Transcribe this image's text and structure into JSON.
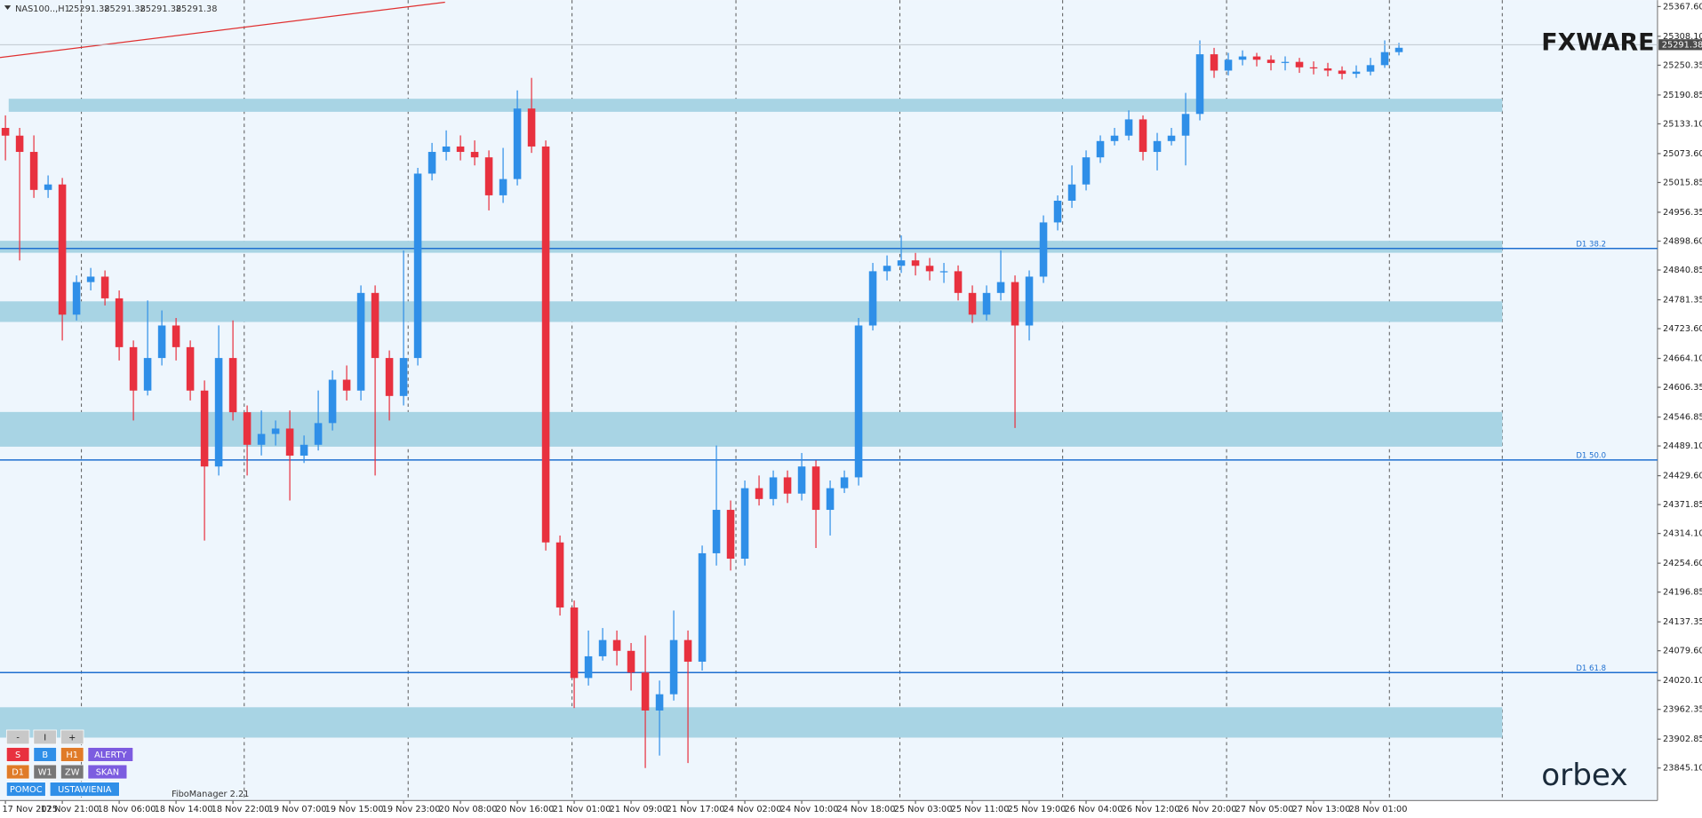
{
  "header": {
    "symbol": "NAS100..,H1",
    "ohlc": [
      25291.38,
      25291.38,
      25291.38,
      25291.38
    ]
  },
  "branding": {
    "top": "FXWARE",
    "bottom": "orbex"
  },
  "indicator_label": "FiboManager 2.21",
  "buttons": [
    [
      {
        "label": "-",
        "color": "#c8c8c8"
      },
      {
        "label": "I",
        "color": "#c8c8c8"
      },
      {
        "label": "+",
        "color": "#c8c8c8"
      }
    ],
    [
      {
        "label": "S",
        "color": "#e8313f"
      },
      {
        "label": "B",
        "color": "#2f8fe8"
      },
      {
        "label": "H1",
        "color": "#e07b28"
      },
      {
        "label": "ALERTY",
        "color": "#7c5ce0"
      }
    ],
    [
      {
        "label": "D1",
        "color": "#e07b28"
      },
      {
        "label": "W1",
        "color": "#777777"
      },
      {
        "label": "ZW",
        "color": "#777777"
      },
      {
        "label": "SKAN",
        "color": "#7c5ce0"
      }
    ],
    [
      {
        "label": "POMOC",
        "color": "#2f8fe8"
      },
      {
        "label": "USTAWIENIA",
        "color": "#2f8fe8"
      }
    ]
  ],
  "chart_data": {
    "type": "candlestick",
    "up_color": "#2f8fe8",
    "down_color": "#e8313f",
    "current_price": 25291.38,
    "ylim": [
      23780,
      25380.6
    ],
    "yticks": [
      {
        "value": 25367.6,
        "label": "25367.60"
      },
      {
        "value": 25308.1,
        "label": "25308.10"
      },
      {
        "value": 25250.35,
        "label": "25250.35"
      },
      {
        "value": 25190.85,
        "label": "25190.85"
      },
      {
        "value": 25133.1,
        "label": "25133.10"
      },
      {
        "value": 25073.6,
        "label": "25073.60"
      },
      {
        "value": 25015.85,
        "label": "25015.85"
      },
      {
        "value": 24956.35,
        "label": "24956.35"
      },
      {
        "value": 24898.6,
        "label": "24898.60"
      },
      {
        "value": 24840.85,
        "label": "24840.85"
      },
      {
        "value": 24781.35,
        "label": "24781.35"
      },
      {
        "value": 24723.6,
        "label": "24723.60"
      },
      {
        "value": 24664.1,
        "label": "24664.10"
      },
      {
        "value": 24606.35,
        "label": "24606.35"
      },
      {
        "value": 24546.85,
        "label": "24546.85"
      },
      {
        "value": 24489.1,
        "label": "24489.10"
      },
      {
        "value": 24429.6,
        "label": "24429.60"
      },
      {
        "value": 24371.85,
        "label": "24371.85"
      },
      {
        "value": 24314.1,
        "label": "24314.10"
      },
      {
        "value": 24254.6,
        "label": "24254.60"
      },
      {
        "value": 24196.85,
        "label": "24196.85"
      },
      {
        "value": 24137.35,
        "label": "24137.35"
      },
      {
        "value": 24079.6,
        "label": "24079.60"
      },
      {
        "value": 24020.1,
        "label": "24020.10"
      },
      {
        "value": 23962.35,
        "label": "23962.35"
      },
      {
        "value": 23902.85,
        "label": "23902.85"
      },
      {
        "value": 23845.1,
        "label": "23845.10"
      }
    ],
    "levels": [
      {
        "label": "D1 38.2",
        "value": 24884,
        "color": "#1e6fd0"
      },
      {
        "label": "D1 50.0",
        "value": 24461,
        "color": "#1e6fd0"
      },
      {
        "label": "D1 61.8",
        "value": 24036,
        "color": "#1e6fd0"
      }
    ],
    "zones": [
      {
        "top": 25183.3,
        "bottom": 25157.2
      },
      {
        "top": 24899.2,
        "bottom": 24875.3
      },
      {
        "top": 24778.2,
        "bottom": 24737.0
      },
      {
        "top": 24557.0,
        "bottom": 24487.6
      },
      {
        "top": 23966.6,
        "bottom": 23905.9
      }
    ],
    "zone_color": "#a8d4e4",
    "categories": [
      "17 Nov 2025",
      null,
      null,
      null,
      "17 Nov 21:00",
      null,
      null,
      null,
      "18 Nov 06:00",
      null,
      null,
      null,
      "18 Nov 14:00",
      null,
      null,
      null,
      "18 Nov 22:00",
      null,
      null,
      null,
      "19 Nov 07:00",
      null,
      null,
      null,
      "19 Nov 15:00",
      null,
      null,
      null,
      "19 Nov 23:00",
      null,
      null,
      null,
      "20 Nov 08:00",
      null,
      null,
      null,
      "20 Nov 16:00",
      null,
      null,
      null,
      "21 Nov 01:00",
      null,
      null,
      null,
      "21 Nov 09:00",
      null,
      null,
      null,
      "21 Nov 17:00",
      null,
      null,
      null,
      "24 Nov 02:00",
      null,
      null,
      null,
      "24 Nov 10:00",
      null,
      null,
      null,
      "24 Nov 18:00",
      null,
      null,
      null,
      "25 Nov 03:00",
      null,
      null,
      null,
      "25 Nov 11:00",
      null,
      null,
      null,
      "25 Nov 19:00",
      null,
      null,
      null,
      "26 Nov 04:00",
      null,
      null,
      null,
      "26 Nov 12:00",
      null,
      null,
      null,
      "26 Nov 20:00",
      null,
      null,
      null,
      "27 Nov 05:00",
      null,
      null,
      null,
      "27 Nov 13:00",
      null,
      null,
      null,
      "28 Nov 01:00",
      null,
      null
    ],
    "open": [
      25125.0,
      25109.5,
      25077.0,
      25001.0,
      25011.9,
      24751.6,
      24816.7,
      24827.6,
      24784.2,
      24686.6,
      24599.8,
      24664.9,
      24729.9,
      24686.6,
      24599.8,
      24448.0,
      24664.9,
      24556.5,
      24491.4,
      24513.1,
      24523.9,
      24469.7,
      24491.4,
      24534.8,
      24621.5,
      24599.8,
      24795.0,
      24664.9,
      24589.0,
      24664.9,
      25033.6,
      25077.0,
      25087.8,
      25077.0,
      25066.1,
      24990.2,
      25022.7,
      25163.7,
      25087.8,
      24296.2,
      24166.1,
      24025.1,
      24068.5,
      24101.0,
      24079.4,
      24036.0,
      23960.1,
      23992.6,
      24101.0,
      24057.7,
      24274.5,
      24361.3,
      24263.7,
      24404.6,
      24383.0,
      24426.3,
      24393.8,
      24448.0,
      24361.3,
      24404.6,
      24426.3,
      24729.9,
      24838.4,
      24849.3,
      24860.1,
      24849.3,
      24838.4,
      24838.4,
      24795.0,
      24751.6,
      24795.0,
      24816.7,
      24729.9,
      24827.6,
      24936.0,
      24979.4,
      25011.9,
      25066.1,
      25098.7,
      25109.5,
      25142.0,
      25077.0,
      25098.7,
      25109.5,
      25152.9,
      25272.2,
      25239.6,
      25261.3,
      25267.8,
      25261.3,
      25254.8,
      25257.0,
      25246.1,
      25243.9,
      25239.6,
      25233.1,
      25237.5,
      25250.5,
      25276.5
    ],
    "high": [
      25150,
      25125,
      25110,
      25030,
      25025,
      24830,
      24845,
      24840,
      24800,
      24700,
      24780,
      24760,
      24745,
      24700,
      24620,
      24730,
      24740,
      24570,
      24560,
      24540,
      24560,
      24510,
      24600,
      24640,
      24650,
      24810,
      24810,
      24680,
      24880,
      25045,
      25095,
      25120,
      25110,
      25100,
      25080,
      25085,
      25200,
      25225,
      25100,
      24310,
      24180,
      24120,
      24125,
      24120,
      24095,
      24110,
      24020,
      24160,
      24120,
      24290,
      24490,
      24380,
      24420,
      24430,
      24440,
      24440,
      24475,
      24460,
      24420,
      24440,
      24745,
      24855,
      24870,
      24910,
      24875,
      24865,
      24855,
      24850,
      24810,
      24810,
      24880,
      24830,
      24840,
      24950,
      24990,
      25050,
      25080,
      25110,
      25125,
      25160,
      25150,
      25115,
      25125,
      25195,
      25300,
      25285,
      25275,
      25280,
      25275,
      25270,
      25268,
      25265,
      25258,
      25255,
      25248,
      25250,
      25265,
      25300,
      25295
    ],
    "low": [
      25060,
      24860,
      24985,
      24985,
      24700,
      24740,
      24800,
      24770,
      24660,
      24540,
      24590,
      24650,
      24660,
      24580,
      24300,
      24430,
      24540,
      24430,
      24470,
      24490,
      24380,
      24455,
      24480,
      24520,
      24580,
      24580,
      24430,
      24540,
      24570,
      24650,
      25020,
      25060,
      25060,
      25050,
      24960,
      24975,
      25010,
      25075,
      24280,
      24150,
      23965,
      24010,
      24060,
      24050,
      24000,
      23845,
      23870,
      23980,
      23855,
      24040,
      24250,
      24240,
      24250,
      24370,
      24370,
      24375,
      24380,
      24285,
      24310,
      24395,
      24410,
      24720,
      24820,
      24835,
      24830,
      24820,
      24815,
      24780,
      24735,
      24740,
      24780,
      24525,
      24700,
      24815,
      24920,
      24965,
      25000,
      25055,
      25090,
      25100,
      25060,
      25040,
      25090,
      25050,
      25140,
      25225,
      25230,
      25250,
      25248,
      25240,
      25240,
      25235,
      25232,
      25228,
      25222,
      25225,
      25230,
      25245,
      25270
    ],
    "close": [
      25109.5,
      25077.0,
      25001.0,
      25011.9,
      24751.6,
      24816.7,
      24827.6,
      24784.2,
      24686.6,
      24599.8,
      24664.9,
      24729.9,
      24686.6,
      24599.8,
      24448.0,
      24664.9,
      24556.5,
      24491.4,
      24513.1,
      24523.9,
      24469.7,
      24491.4,
      24534.8,
      24621.5,
      24599.8,
      24795.0,
      24664.9,
      24589.0,
      24664.9,
      25033.6,
      25077.0,
      25087.8,
      25077.0,
      25066.1,
      24990.2,
      25022.7,
      25163.7,
      25087.8,
      24296.2,
      24166.1,
      24025.1,
      24068.5,
      24101.0,
      24079.4,
      24036.0,
      23960.1,
      23992.6,
      24101.0,
      24057.7,
      24274.5,
      24361.3,
      24263.7,
      24404.6,
      24383.0,
      24426.3,
      24393.8,
      24448.0,
      24361.3,
      24404.6,
      24426.3,
      24729.9,
      24838.4,
      24849.3,
      24860.1,
      24849.3,
      24838.4,
      24838.4,
      24795.0,
      24751.6,
      24795.0,
      24816.7,
      24729.9,
      24827.6,
      24936.0,
      24979.4,
      25011.9,
      25066.1,
      25098.7,
      25109.5,
      25142.0,
      25077.0,
      25098.7,
      25109.5,
      25152.9,
      25272.2,
      25239.6,
      25261.3,
      25267.8,
      25261.3,
      25254.8,
      25257.0,
      25246.1,
      25243.9,
      25239.6,
      25233.1,
      25237.5,
      25250.5,
      25276.5,
      25285.2
    ]
  }
}
